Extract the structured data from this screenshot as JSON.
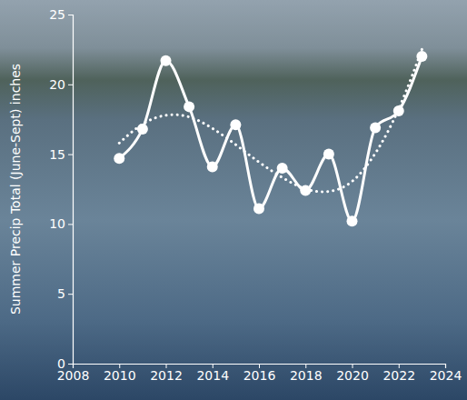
{
  "chart_data": {
    "type": "line",
    "y_label": "Summer Precip Total (June-Sept) inches",
    "x": [
      2010,
      2011,
      2012,
      2013,
      2014,
      2015,
      2016,
      2017,
      2018,
      2019,
      2020,
      2021,
      2022,
      2023
    ],
    "series": [
      {
        "color": "#ffffff",
        "marker": "circle",
        "line_style": "solid",
        "values": [
          14.7,
          16.8,
          21.7,
          18.4,
          14.1,
          17.1,
          11.1,
          14.0,
          12.4,
          15.0,
          10.2,
          16.9,
          18.1,
          22.0
        ]
      },
      {
        "color": "#ffffff",
        "marker": "none",
        "line_style": "dotted",
        "values": [
          15.8,
          17.3,
          17.9,
          17.8,
          16.9,
          15.7,
          14.4,
          13.3,
          12.4,
          12.2,
          12.8,
          14.9,
          18.0,
          22.5
        ]
      }
    ],
    "xlim": [
      2008,
      2024
    ],
    "xticks": [
      2008,
      2010,
      2012,
      2014,
      2016,
      2018,
      2020,
      2022,
      2024
    ],
    "ylim": [
      0,
      25
    ],
    "yticks": [
      0,
      5,
      10,
      15,
      20,
      25
    ],
    "grid": false
  }
}
